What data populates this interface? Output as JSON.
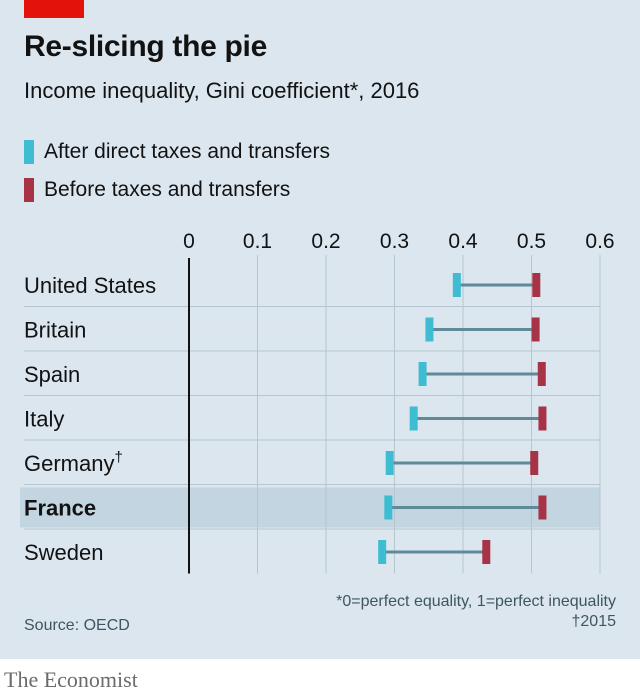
{
  "header": {
    "title": "Re-slicing the pie",
    "subtitle": "Income inequality, Gini coefficient*, 2016"
  },
  "colors": {
    "after": "#3ebcd2",
    "before": "#a63446",
    "connector": "#5f8a99",
    "highlight_band": "#c2d5e1",
    "grid": "#b6c5cf",
    "axis": "#121212"
  },
  "legend": [
    {
      "label": "After direct taxes and transfers",
      "color": "#3ebcd2"
    },
    {
      "label": "Before taxes and transfers",
      "color": "#a63446"
    }
  ],
  "chart_data": {
    "type": "dumbbell",
    "xlim": [
      0,
      0.6
    ],
    "ticks": [
      "0",
      "0.1",
      "0.2",
      "0.3",
      "0.4",
      "0.5",
      "0.6"
    ],
    "tick_values": [
      0,
      0.1,
      0.2,
      0.3,
      0.4,
      0.5,
      0.6
    ],
    "grid": true,
    "legend_position": "top-left",
    "highlighted": "France",
    "series": [
      {
        "name": "After direct taxes and transfers",
        "values": [
          0.391,
          0.351,
          0.341,
          0.328,
          0.293,
          0.291,
          0.282
        ]
      },
      {
        "name": "Before taxes and transfers",
        "values": [
          0.507,
          0.506,
          0.515,
          0.516,
          0.504,
          0.516,
          0.434
        ]
      }
    ],
    "categories": [
      {
        "label": "United States",
        "sup": "",
        "after": 0.391,
        "before": 0.507
      },
      {
        "label": "Britain",
        "sup": "",
        "after": 0.351,
        "before": 0.506
      },
      {
        "label": "Spain",
        "sup": "",
        "after": 0.341,
        "before": 0.515
      },
      {
        "label": "Italy",
        "sup": "",
        "after": 0.328,
        "before": 0.516
      },
      {
        "label": "Germany",
        "sup": "†",
        "after": 0.293,
        "before": 0.504
      },
      {
        "label": "France",
        "sup": "",
        "after": 0.291,
        "before": 0.516
      },
      {
        "label": "Sweden",
        "sup": "",
        "after": 0.282,
        "before": 0.434
      }
    ]
  },
  "footnote": {
    "line1": "*0=perfect equality, 1=perfect inequality",
    "line2": "†2015"
  },
  "source": "Source: OECD",
  "brand": "The Economist"
}
